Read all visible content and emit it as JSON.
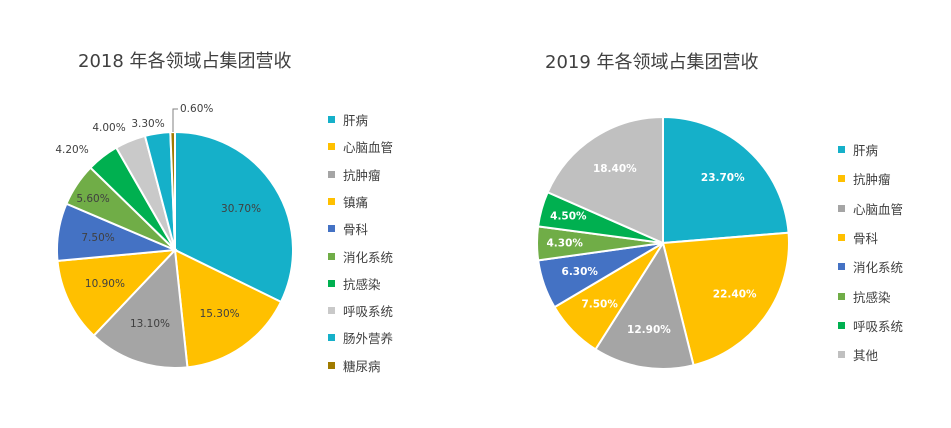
{
  "chart_data": [
    {
      "type": "pie",
      "title": "2018 年各领域占集团营收",
      "categories": [
        "肝病",
        "心脑血管",
        "抗肿瘤",
        "镇痛",
        "骨科",
        "消化系统",
        "抗感染",
        "呼吸系统",
        "肠外营养",
        "糖尿病"
      ],
      "values": [
        30.7,
        15.3,
        13.1,
        10.9,
        7.5,
        5.6,
        4.2,
        4.0,
        3.3,
        0.6
      ],
      "labels": [
        "30.70%",
        "15.30%",
        "13.10%",
        "10.90%",
        "7.50%",
        "5.60%",
        "4.20%",
        "4.00%",
        "3.30%",
        "0.60%"
      ],
      "colors": [
        "#15B0C9",
        "#FFC000",
        "#A5A5A5",
        "#FFC000",
        "#4472C4",
        "#70AD47",
        "#00B050",
        "#C9C9C9",
        "#15B0C9",
        "#A07B00"
      ],
      "legend_position": "right",
      "label_style": "normal"
    },
    {
      "type": "pie",
      "title": "2019 年各领域占集团营收",
      "categories": [
        "肝病",
        "抗肿瘤",
        "心脑血管",
        "骨科",
        "消化系统",
        "抗感染",
        "呼吸系统",
        "其他"
      ],
      "values": [
        23.7,
        22.4,
        12.9,
        7.5,
        6.3,
        4.3,
        4.5,
        18.4
      ],
      "labels": [
        "23.70%",
        "22.40%",
        "12.90%",
        "7.50%",
        "6.30%",
        "4.30%",
        "4.50%",
        "18.40%"
      ],
      "colors": [
        "#15B0C9",
        "#FFC000",
        "#A5A5A5",
        "#FFC000",
        "#4472C4",
        "#70AD47",
        "#00B050",
        "#C0C0C0"
      ],
      "legend_position": "right",
      "label_style": "bold"
    }
  ]
}
